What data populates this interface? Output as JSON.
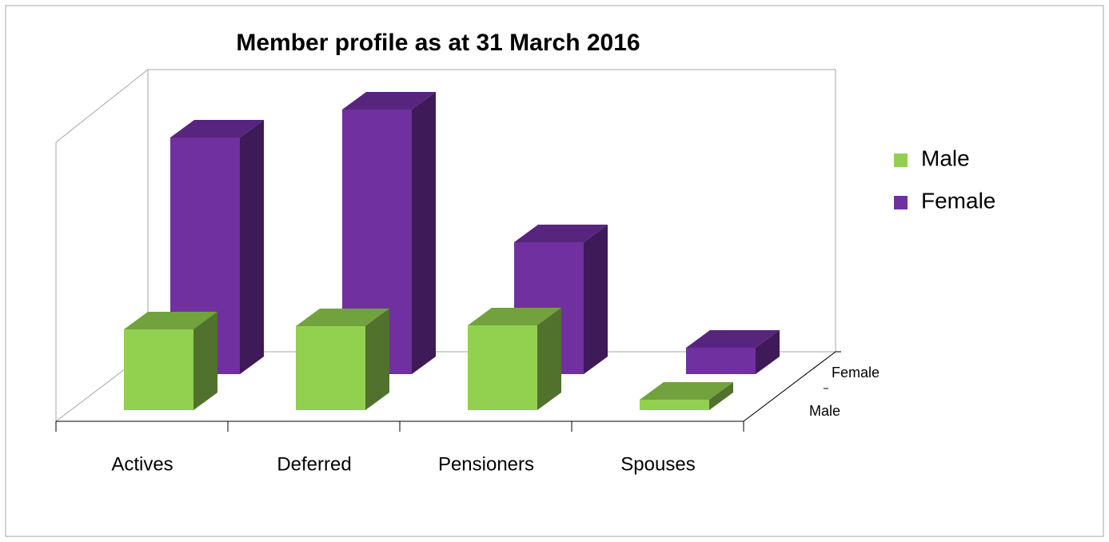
{
  "chart_data": {
    "type": "bar3d",
    "title": "Member profile as at 31 March 2016",
    "categories": [
      "Actives",
      "Deferred",
      "Pensioners",
      "Spouses"
    ],
    "series": [
      {
        "name": "Male",
        "color": "#92d050",
        "values": [
          101,
          105,
          106,
          13
        ]
      },
      {
        "name": "Female",
        "color": "#7030a0",
        "values": [
          296,
          331,
          165,
          33
        ]
      }
    ],
    "depth_labels": [
      "Male",
      "Female"
    ],
    "legend": "right"
  }
}
